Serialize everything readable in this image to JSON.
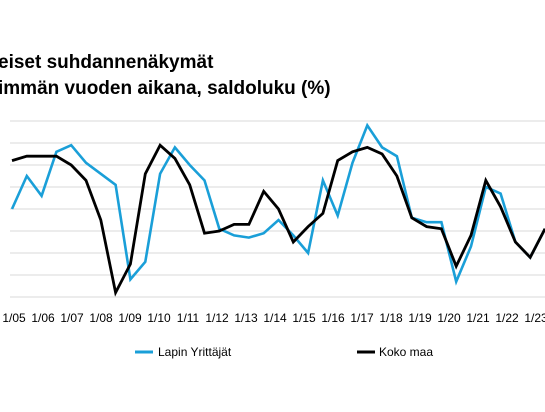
{
  "title_line1": "eiset suhdannenäkymät",
  "title_line2": "immän vuoden aikana, saldoluku (%)",
  "chart_data": {
    "type": "line",
    "x_tick_labels": [
      "1/05",
      "1/06",
      "1/07",
      "1/08",
      "1/09",
      "1/10",
      "1/11",
      "1/12",
      "1/13",
      "1/14",
      "1/15",
      "1/16",
      "1/17",
      "1/18",
      "1/19",
      "1/20",
      "1/21",
      "1/22",
      "1/23"
    ],
    "grid": true,
    "legend_position": "bottom",
    "series": [
      {
        "name": "Lapin Yrittäjät",
        "color": "#1a9fd8",
        "values": [
          20,
          35,
          26,
          46,
          49,
          41,
          36,
          31,
          -12,
          -4,
          36,
          48,
          40,
          33,
          11,
          8,
          7,
          9,
          15,
          8,
          0,
          33,
          17,
          41,
          58,
          48,
          44,
          16,
          14,
          14,
          -13,
          3,
          30,
          27,
          5,
          -2,
          11
        ]
      },
      {
        "name": "Koko maa",
        "color": "#000000",
        "values": [
          42,
          44,
          44,
          44,
          40,
          33,
          15,
          -18,
          -5,
          36,
          49,
          43,
          31,
          9,
          10,
          13,
          13,
          28,
          20,
          5,
          12,
          18,
          42,
          46,
          48,
          45,
          35,
          16,
          12,
          11,
          -6,
          8,
          33,
          21,
          5,
          -2,
          11
        ]
      }
    ]
  }
}
